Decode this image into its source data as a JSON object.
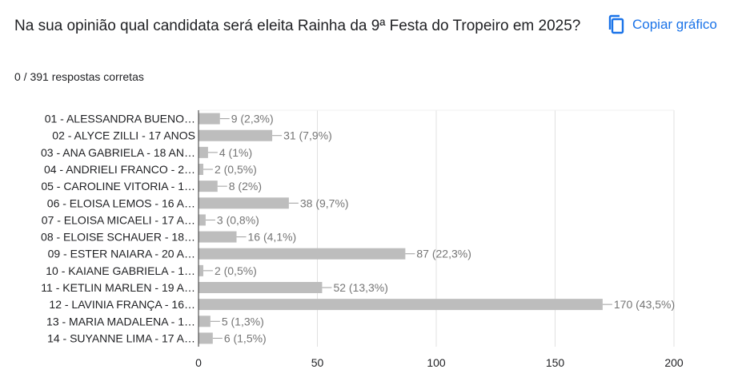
{
  "header": {
    "title": "Na sua opinião qual candidata será eleita Rainha da 9ª Festa do Tropeiro em 2025?",
    "responses": "0 / 391 respostas corretas",
    "copy_label": "Copiar gráfico",
    "copy_icon": "copy-icon"
  },
  "colors": {
    "bar": "#bdbdbd",
    "accent": "#1a73e8",
    "grid": "#e0e0e0",
    "label": "#202124",
    "value_label": "#757575"
  },
  "chart_data": {
    "type": "bar",
    "orientation": "horizontal",
    "categories": [
      "01 - ALESSANDRA BUENO…",
      "02 - ALYCE ZILLI - 17 ANOS",
      "03 - ANA GABRIELA - 18 AN…",
      "04 - ANDRIELI FRANCO - 2…",
      "05 - CAROLINE VITORIA - 1…",
      "06 - ELOISA LEMOS - 16 A…",
      "07 - ELOISA MICAELI - 17 A…",
      "08 - ELOISE SCHAUER - 18…",
      "09 - ESTER NAIARA - 20 A…",
      "10 - KAIANE GABRIELA - 1…",
      "11 - KETLIN MARLEN - 19 A…",
      "12 - LAVINIA FRANÇA - 16…",
      "13 - MARIA MADALENA - 1…",
      "14 - SUYANNE LIMA - 17 A…"
    ],
    "values": [
      9,
      31,
      4,
      2,
      8,
      38,
      3,
      16,
      87,
      2,
      52,
      170,
      5,
      6
    ],
    "data_labels": [
      "9 (2,3%)",
      "31 (7,9%)",
      "4 (1%)",
      "2 (0,5%)",
      "8 (2%)",
      "38 (9,7%)",
      "3 (0,8%)",
      "16 (4,1%)",
      "87 (22,3%)",
      "2 (0,5%)",
      "52 (13,3%)",
      "170 (43,5%)",
      "5 (1,3%)",
      "6 (1,5%)"
    ],
    "xlim": [
      0,
      200
    ],
    "xticks": [
      0,
      50,
      100,
      150,
      200
    ],
    "grid": true,
    "legend": "none"
  }
}
